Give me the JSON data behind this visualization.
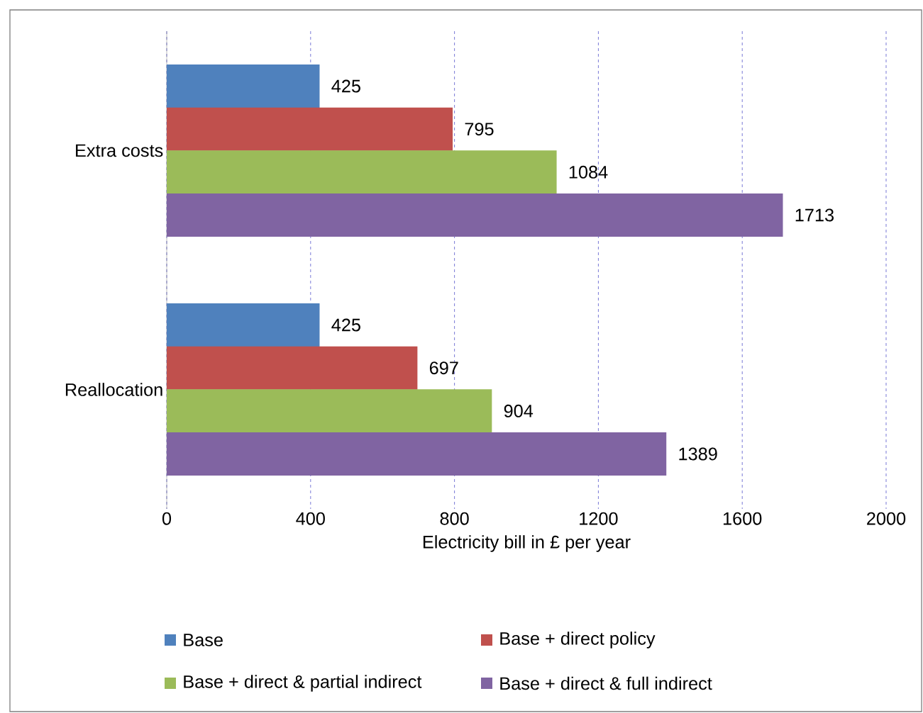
{
  "chart_data": {
    "type": "bar",
    "orientation": "horizontal",
    "categories": [
      "Extra costs",
      "Reallocation"
    ],
    "series": [
      {
        "name": "Base",
        "color": "#4f81bd",
        "values": [
          425,
          425
        ]
      },
      {
        "name": "Base + direct policy",
        "color": "#c0504d",
        "values": [
          795,
          697
        ]
      },
      {
        "name": "Base + direct & partial indirect",
        "color": "#9bbb59",
        "values": [
          1084,
          904
        ]
      },
      {
        "name": "Base + direct & full indirect",
        "color": "#8064a2",
        "values": [
          1713,
          1389
        ]
      }
    ],
    "xlabel": "Electricity bill in £ per year",
    "xlim": [
      0,
      2000
    ],
    "xticks": [
      0,
      400,
      800,
      1200,
      1600,
      2000
    ],
    "grid": "x",
    "legend": "bottom",
    "data_labels": true
  }
}
